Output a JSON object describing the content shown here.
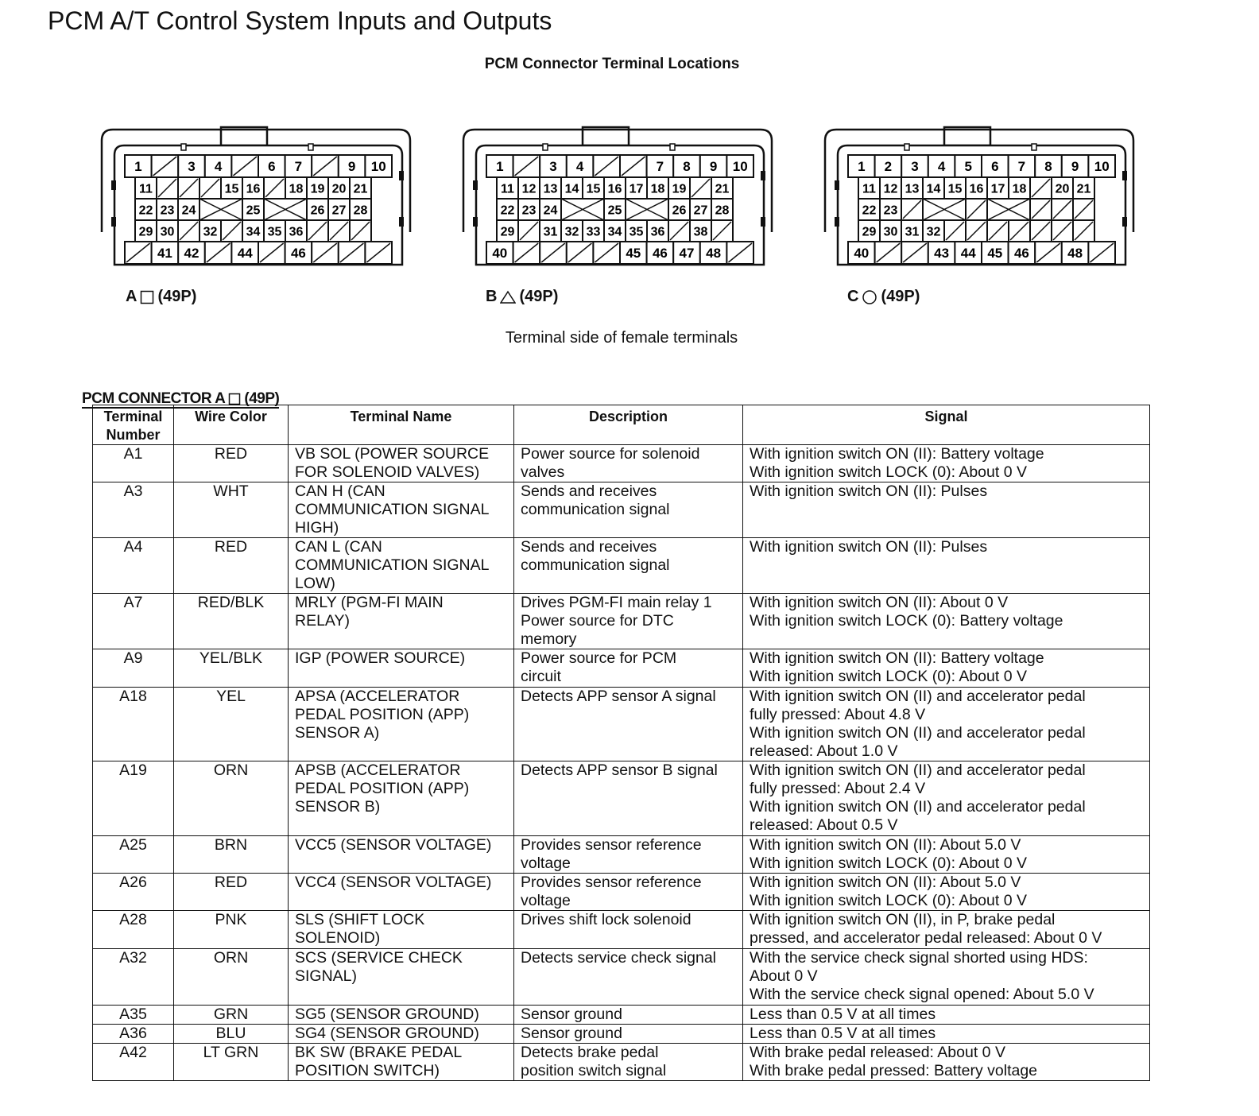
{
  "title": "PCM A/T Control System Inputs and Outputs",
  "subtitle": "PCM Connector Terminal Locations",
  "connectors": [
    {
      "letter": "A",
      "shape": "square",
      "pins": "(49P)",
      "rows": [
        [
          "1",
          "/",
          "3",
          "4",
          "/",
          "6",
          "7",
          "/",
          "9",
          "10"
        ],
        [
          "11",
          "/",
          "/",
          "/",
          "15",
          "16",
          "/",
          "18",
          "19",
          "20",
          "21"
        ],
        [
          "22",
          "23",
          "24",
          "X",
          "25",
          "X",
          "26",
          "27",
          "28"
        ],
        [
          "29",
          "30",
          "/",
          "32",
          "/",
          "34",
          "35",
          "36",
          "/",
          "/",
          "/"
        ],
        [
          "/",
          "41",
          "42",
          "/",
          "44",
          "/",
          "46",
          "/",
          "/",
          "/"
        ]
      ]
    },
    {
      "letter": "B",
      "shape": "triangle",
      "pins": "(49P)",
      "rows": [
        [
          "1",
          "/",
          "3",
          "4",
          "/",
          "/",
          "7",
          "8",
          "9",
          "10"
        ],
        [
          "11",
          "12",
          "13",
          "14",
          "15",
          "16",
          "17",
          "18",
          "19",
          "/",
          "21"
        ],
        [
          "22",
          "23",
          "24",
          "X",
          "25",
          "X",
          "26",
          "27",
          "28"
        ],
        [
          "29",
          "/",
          "31",
          "32",
          "33",
          "34",
          "35",
          "36",
          "/",
          "38",
          "/"
        ],
        [
          "40",
          "/",
          "/",
          "/",
          "/",
          "45",
          "46",
          "47",
          "48",
          "/"
        ]
      ]
    },
    {
      "letter": "C",
      "shape": "circle",
      "pins": "(49P)",
      "rows": [
        [
          "1",
          "2",
          "3",
          "4",
          "5",
          "6",
          "7",
          "8",
          "9",
          "10"
        ],
        [
          "11",
          "12",
          "13",
          "14",
          "15",
          "16",
          "17",
          "18",
          "/",
          "20",
          "21"
        ],
        [
          "22",
          "23",
          "/",
          "X",
          "/",
          "X",
          "/",
          "/",
          "/"
        ],
        [
          "29",
          "30",
          "31",
          "32",
          "/",
          "/",
          "/",
          "/",
          "/",
          "/",
          "/"
        ],
        [
          "40",
          "/",
          "/",
          "43",
          "44",
          "45",
          "46",
          "/",
          "48",
          "/"
        ]
      ]
    }
  ],
  "note": "Terminal side of female terminals",
  "table": {
    "caption_prefix": "PCM CONNECTOR A",
    "caption_shape": "square",
    "caption_suffix": "(49P)",
    "headers": [
      "Terminal\nNumber",
      "Wire Color",
      "Terminal Name",
      "Description",
      "Signal"
    ],
    "rows": [
      [
        "A1",
        "RED",
        "VB SOL (POWER SOURCE\nFOR SOLENOID VALVES)",
        "Power source for solenoid\nvalves",
        "With ignition switch ON (II): Battery voltage\nWith ignition switch LOCK (0): About 0 V"
      ],
      [
        "A3",
        "WHT",
        "CAN H (CAN\nCOMMUNICATION SIGNAL\nHIGH)",
        "Sends and receives\ncommunication signal",
        "With ignition switch ON (II): Pulses"
      ],
      [
        "A4",
        "RED",
        "CAN L (CAN\nCOMMUNICATION SIGNAL\nLOW)",
        "Sends and receives\ncommunication signal",
        "With ignition switch ON (II): Pulses"
      ],
      [
        "A7",
        "RED/BLK",
        "MRLY (PGM-FI MAIN\nRELAY)",
        "Drives PGM-FI main relay 1\nPower source for DTC\nmemory",
        "With ignition switch ON (II): About 0 V\nWith ignition switch LOCK (0): Battery voltage"
      ],
      [
        "A9",
        "YEL/BLK",
        "IGP (POWER SOURCE)",
        "Power source for PCM\ncircuit",
        "With ignition switch ON (II): Battery voltage\nWith ignition switch LOCK (0): About 0 V"
      ],
      [
        "A18",
        "YEL",
        "APSA (ACCELERATOR\nPEDAL POSITION (APP)\nSENSOR A)",
        "Detects APP sensor A signal",
        "With ignition switch ON (II) and accelerator pedal\nfully pressed: About 4.8 V\nWith ignition switch ON (II) and accelerator pedal\nreleased: About 1.0 V"
      ],
      [
        "A19",
        "ORN",
        "APSB (ACCELERATOR\nPEDAL POSITION (APP)\nSENSOR B)",
        "Detects APP sensor B signal",
        "With ignition switch ON (II) and accelerator pedal\nfully pressed: About 2.4 V\nWith ignition switch ON (II) and accelerator pedal\nreleased: About 0.5 V"
      ],
      [
        "A25",
        "BRN",
        "VCC5 (SENSOR VOLTAGE)",
        "Provides sensor reference\nvoltage",
        "With ignition switch ON (II): About 5.0 V\nWith ignition switch LOCK (0): About 0 V"
      ],
      [
        "A26",
        "RED",
        "VCC4 (SENSOR VOLTAGE)",
        "Provides sensor reference\nvoltage",
        "With ignition switch ON (II): About 5.0 V\nWith ignition switch LOCK (0): About 0 V"
      ],
      [
        "A28",
        "PNK",
        "SLS (SHIFT LOCK\nSOLENOID)",
        "Drives shift lock solenoid",
        "With ignition switch ON (II), in P, brake pedal\npressed, and accelerator pedal released: About 0 V"
      ],
      [
        "A32",
        "ORN",
        "SCS (SERVICE CHECK\nSIGNAL)",
        "Detects service check signal",
        "With the service check signal shorted using HDS:\nAbout 0 V\nWith the service check signal opened: About 5.0 V"
      ],
      [
        "A35",
        "GRN",
        "SG5 (SENSOR GROUND)",
        "Sensor ground",
        "Less than 0.5 V at all times"
      ],
      [
        "A36",
        "BLU",
        "SG4 (SENSOR GROUND)",
        "Sensor ground",
        "Less than 0.5 V at all times"
      ],
      [
        "A42",
        "LT GRN",
        "BK SW (BRAKE PEDAL\nPOSITION SWITCH)",
        "Detects brake pedal\nposition switch signal",
        "With brake pedal released: About 0 V\nWith brake pedal pressed: Battery voltage"
      ]
    ]
  }
}
